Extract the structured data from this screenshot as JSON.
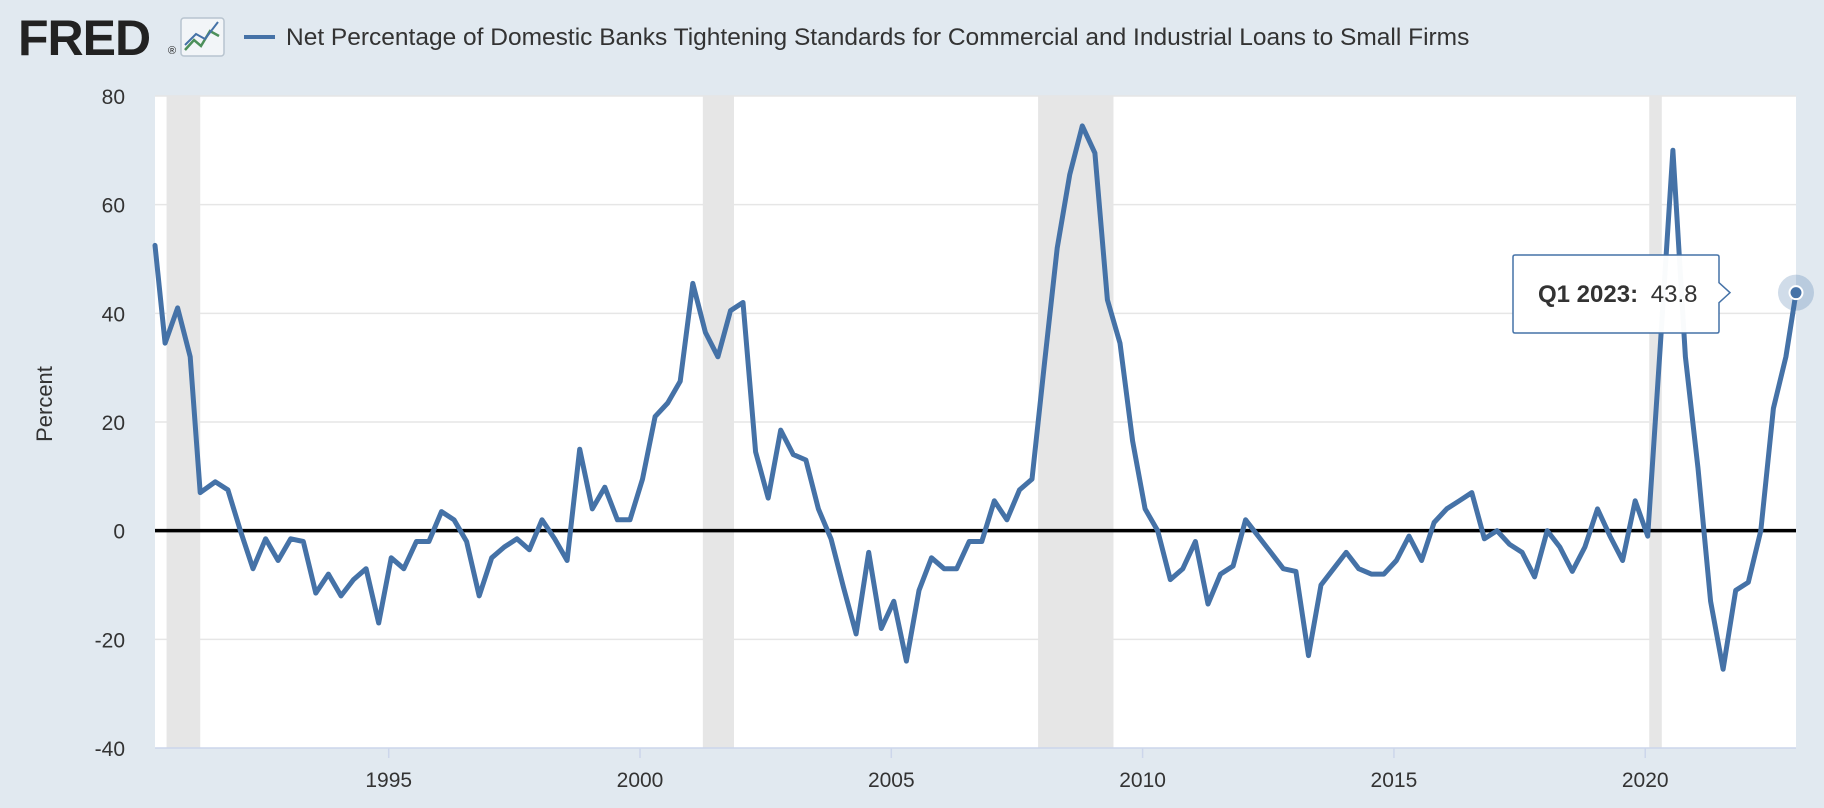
{
  "header": {
    "logo_text": "FRED",
    "logo_mark": "®",
    "legend_label": "Net Percentage of Domestic Banks Tightening Standards for Commercial and Industrial Loans to Small Firms"
  },
  "colors": {
    "background": "#e1e9f0",
    "plot_background": "#ffffff",
    "series": "#4572a7",
    "recession": "#e6e6e6",
    "grid": "#e6e6e6",
    "zero_line": "#000000",
    "axis_text": "#333333"
  },
  "tooltip": {
    "label": "Q1 2023:",
    "value": "43.8"
  },
  "chart_data": {
    "type": "line",
    "title": "Net Percentage of Domestic Banks Tightening Standards for Commercial and Industrial Loans to Small Firms",
    "xlabel": "",
    "ylabel": "Percent",
    "xlim": [
      1990.35,
      2023.0
    ],
    "ylim": [
      -40,
      80
    ],
    "y_ticks": [
      80,
      60,
      40,
      20,
      0,
      -20,
      -40
    ],
    "y_tick_labels": [
      "80",
      "60",
      "40",
      "20",
      "0",
      "-20",
      "-40"
    ],
    "x_ticks": [
      1995,
      2000,
      2005,
      2010,
      2015,
      2020
    ],
    "x_tick_labels": [
      "1995",
      "2000",
      "2005",
      "2010",
      "2015",
      "2020"
    ],
    "recessions": [
      [
        1990.58,
        1991.25
      ],
      [
        2001.25,
        2001.87
      ],
      [
        2007.92,
        2009.42
      ],
      [
        2020.08,
        2020.33
      ]
    ],
    "series": [
      {
        "name": "Net Percentage of Domestic Banks Tightening Standards for Commercial and Industrial Loans to Small Firms",
        "x": [
          1990.35,
          1990.55,
          1990.8,
          1991.05,
          1991.25,
          1991.55,
          1991.8,
          1992.05,
          1992.3,
          1992.55,
          1992.8,
          1993.05,
          1993.3,
          1993.55,
          1993.8,
          1994.05,
          1994.3,
          1994.55,
          1994.8,
          1995.05,
          1995.3,
          1995.55,
          1995.8,
          1996.05,
          1996.3,
          1996.55,
          1996.8,
          1997.05,
          1997.3,
          1997.55,
          1997.8,
          1998.05,
          1998.3,
          1998.55,
          1998.8,
          1999.05,
          1999.3,
          1999.55,
          1999.8,
          2000.05,
          2000.3,
          2000.55,
          2000.8,
          2001.05,
          2001.3,
          2001.55,
          2001.8,
          2002.05,
          2002.3,
          2002.55,
          2002.8,
          2003.05,
          2003.3,
          2003.55,
          2003.8,
          2004.05,
          2004.3,
          2004.55,
          2004.8,
          2005.05,
          2005.3,
          2005.55,
          2005.8,
          2006.05,
          2006.3,
          2006.55,
          2006.8,
          2007.05,
          2007.3,
          2007.55,
          2007.8,
          2008.05,
          2008.3,
          2008.55,
          2008.8,
          2009.05,
          2009.3,
          2009.55,
          2009.8,
          2010.05,
          2010.3,
          2010.55,
          2010.8,
          2011.05,
          2011.3,
          2011.55,
          2011.8,
          2012.05,
          2012.3,
          2012.55,
          2012.8,
          2013.05,
          2013.3,
          2013.55,
          2013.8,
          2014.05,
          2014.3,
          2014.55,
          2014.8,
          2015.05,
          2015.3,
          2015.55,
          2015.8,
          2016.05,
          2016.3,
          2016.55,
          2016.8,
          2017.05,
          2017.3,
          2017.55,
          2017.8,
          2018.05,
          2018.3,
          2018.55,
          2018.8,
          2019.05,
          2019.3,
          2019.55,
          2019.8,
          2020.05,
          2020.3,
          2020.55,
          2020.8,
          2021.05,
          2021.3,
          2021.55,
          2021.8,
          2022.05,
          2022.3,
          2022.55,
          2022.8,
          2023.0
        ],
        "values": [
          52.5,
          34.5,
          41,
          32,
          7,
          9,
          7.5,
          0,
          -7,
          -1.5,
          -5.5,
          -1.5,
          -2,
          -11.5,
          -8,
          -12,
          -9,
          -7,
          -17,
          -5,
          -7,
          -2,
          -2,
          3.5,
          2,
          -2,
          -12,
          -5,
          -3,
          -1.5,
          -3.5,
          2,
          -1.5,
          -5.5,
          15,
          4,
          8,
          2,
          2,
          9.5,
          21,
          23.5,
          27.5,
          45.5,
          36.5,
          32,
          40.5,
          42,
          14.5,
          6,
          18.5,
          14,
          13,
          4,
          -1.5,
          -10.5,
          -19,
          -4,
          -18,
          -13,
          -24,
          -11,
          -5,
          -7,
          -7,
          -2,
          -2,
          5.5,
          2,
          7.5,
          9.5,
          31,
          52,
          65.5,
          74.5,
          69.5,
          42.5,
          34.5,
          16.5,
          4,
          0,
          -9,
          -7,
          -2,
          -13.5,
          -8,
          -6.5,
          2,
          -1,
          -4,
          -7,
          -7.5,
          -23,
          -10,
          -7,
          -4,
          -7,
          -8,
          -8,
          -5.5,
          -1,
          -5.5,
          1.5,
          4,
          5.5,
          7,
          -1.5,
          0,
          -2.5,
          -4,
          -8.5,
          0,
          -3,
          -7.5,
          -3,
          4,
          -1,
          -5.5,
          5.5,
          -1,
          34,
          70,
          32,
          11.5,
          -13,
          -25.5,
          -11,
          -9.5,
          0,
          22.5,
          32,
          43.8
        ]
      }
    ]
  }
}
